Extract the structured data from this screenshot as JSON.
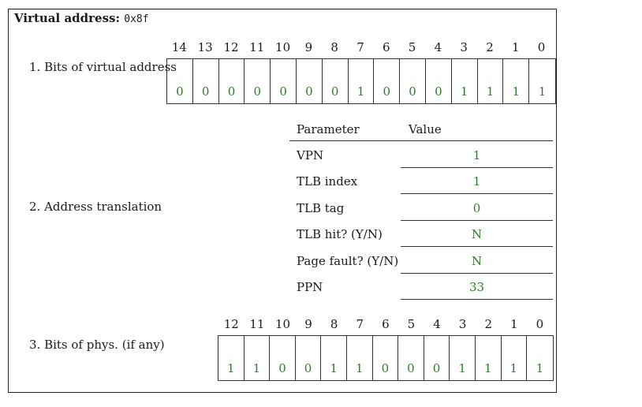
{
  "header": {
    "label": "Virtual address:",
    "value": "0x8f"
  },
  "steps": {
    "s1": "1.  Bits of virtual address",
    "s2": "2.  Address translation",
    "s3": "3.  Bits of phys. (if any)"
  },
  "virtual": {
    "indices": [
      "14",
      "13",
      "12",
      "11",
      "10",
      "9",
      "8",
      "7",
      "6",
      "5",
      "4",
      "3",
      "2",
      "1",
      "0"
    ],
    "bits": [
      "0",
      "0",
      "0",
      "0",
      "0",
      "0",
      "0",
      "1",
      "0",
      "0",
      "0",
      "1",
      "1",
      "1",
      "1"
    ]
  },
  "translation": {
    "col_param": "Parameter",
    "col_value": "Value",
    "rows": [
      {
        "param": "VPN",
        "value": "1"
      },
      {
        "param": "TLB index",
        "value": "1"
      },
      {
        "param": "TLB tag",
        "value": "0"
      },
      {
        "param": "TLB hit? (Y/N)",
        "value": "N"
      },
      {
        "param": "Page fault? (Y/N)",
        "value": "N"
      },
      {
        "param": "PPN",
        "value": "33"
      }
    ]
  },
  "physical": {
    "indices": [
      "12",
      "11",
      "10",
      "9",
      "8",
      "7",
      "6",
      "5",
      "4",
      "3",
      "2",
      "1",
      "0"
    ],
    "bits": [
      "1",
      "1",
      "0",
      "0",
      "1",
      "1",
      "0",
      "0",
      "0",
      "1",
      "1",
      "1",
      "1"
    ]
  },
  "colors": {
    "answer": "#2e7d2e"
  }
}
